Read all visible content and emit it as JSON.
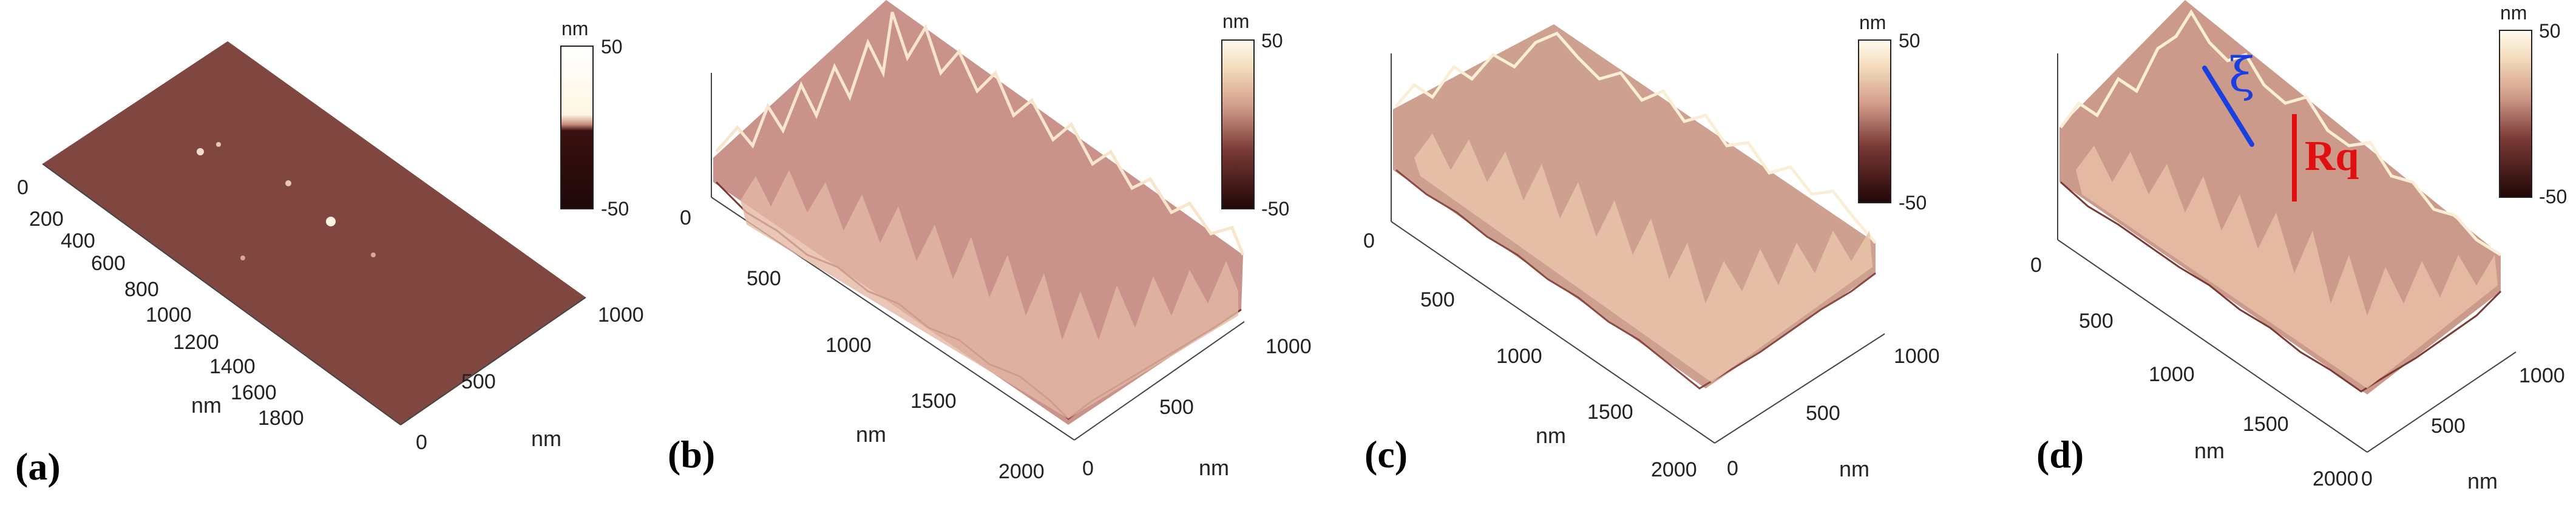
{
  "figure": {
    "panels": [
      {
        "label": "(a)",
        "x_axis": {
          "label": "nm",
          "ticks": [
            "0",
            "200",
            "400",
            "600",
            "800",
            "1000",
            "1200",
            "1400",
            "1600",
            "1800"
          ]
        },
        "y_axis": {
          "label": "nm",
          "ticks": [
            "0",
            "500",
            "1000"
          ]
        },
        "z_axis_tick": "",
        "colorbar": {
          "unit": "nm",
          "max": "50",
          "min": "-50"
        },
        "surface": "flat-smooth"
      },
      {
        "label": "(b)",
        "x_axis": {
          "label": "nm",
          "ticks": [
            "500",
            "1000",
            "1500",
            "2000"
          ]
        },
        "y_axis": {
          "label": "nm",
          "ticks": [
            "0",
            "500",
            "1000"
          ]
        },
        "z_axis_tick": "0",
        "colorbar": {
          "unit": "nm",
          "max": "50",
          "min": "-50"
        },
        "surface": "rough"
      },
      {
        "label": "(c)",
        "x_axis": {
          "label": "nm",
          "ticks": [
            "500",
            "1000",
            "1500",
            "2000"
          ]
        },
        "y_axis": {
          "label": "nm",
          "ticks": [
            "0",
            "500",
            "1000"
          ]
        },
        "z_axis_tick": "0",
        "colorbar": {
          "unit": "nm",
          "max": "50",
          "min": "-50"
        },
        "surface": "rough"
      },
      {
        "label": "(d)",
        "x_axis": {
          "label": "nm",
          "ticks": [
            "500",
            "1000",
            "1500",
            "2000"
          ]
        },
        "y_axis": {
          "label": "nm",
          "ticks": [
            "0",
            "500",
            "1000"
          ]
        },
        "z_axis_tick": "0",
        "colorbar": {
          "unit": "nm",
          "max": "50",
          "min": "-50"
        },
        "surface": "rough",
        "annotations": {
          "correlation_length": "ξ",
          "roughness": "Rq"
        }
      }
    ],
    "colors": {
      "colormap_dark": "#2a0c0c",
      "colormap_mid": "#b06a60",
      "colormap_light": "#fff6dc",
      "xi_line": "#1a3fe0",
      "rq_line": "#e01010"
    }
  }
}
